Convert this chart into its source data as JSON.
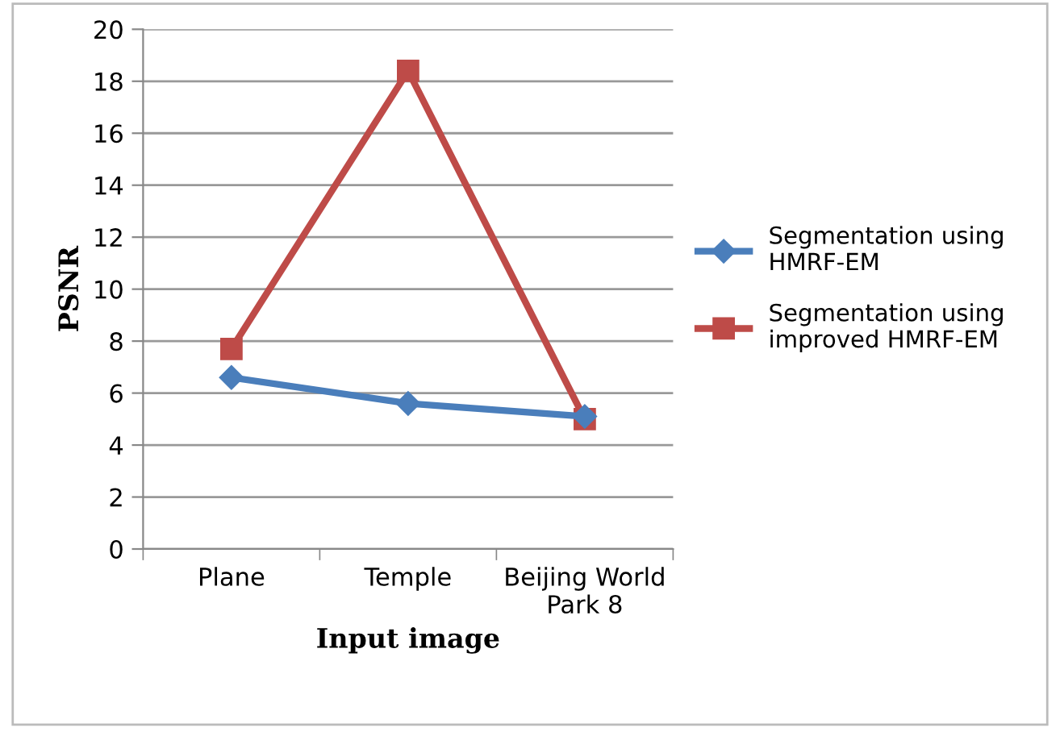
{
  "chart_data": {
    "type": "line",
    "xlabel": "Input image",
    "ylabel": "PSNR",
    "categories": [
      "Plane",
      "Temple",
      "Beijing World\nPark 8"
    ],
    "series": [
      {
        "name": "Segmentation using\nHMRF-EM",
        "color": "#4a7ebb",
        "marker": "diamond",
        "values": [
          6.6,
          5.6,
          5.1
        ]
      },
      {
        "name": "Segmentation using\nimproved HMRF-EM",
        "color": "#be4b48",
        "marker": "square",
        "values": [
          7.7,
          18.4,
          5.0
        ]
      }
    ],
    "ylim": [
      0,
      20
    ],
    "yticks": [
      0,
      2,
      4,
      6,
      8,
      10,
      12,
      14,
      16,
      18,
      20
    ],
    "grid": "y",
    "legend": "right",
    "line_style": "solid"
  }
}
